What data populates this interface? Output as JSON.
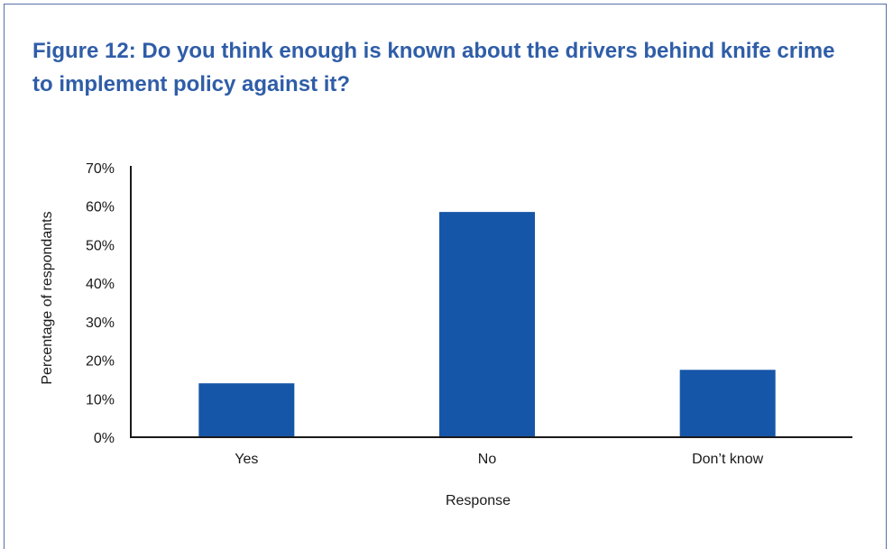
{
  "title": "Figure 12: Do you think enough is known about the drivers behind knife crime to implement policy against it?",
  "chart_data": {
    "type": "bar",
    "categories": [
      "Yes",
      "No",
      "Don’t know"
    ],
    "values": [
      14,
      58.5,
      17.5
    ],
    "ylabel": "Percentage of respondants",
    "xlabel": "Response",
    "ylim": [
      0,
      70
    ],
    "yticks": [
      "0%",
      "10%",
      "20%",
      "30%",
      "40%",
      "50%",
      "60%",
      "70%"
    ],
    "bar_color": "#1656a8",
    "grid": false
  }
}
